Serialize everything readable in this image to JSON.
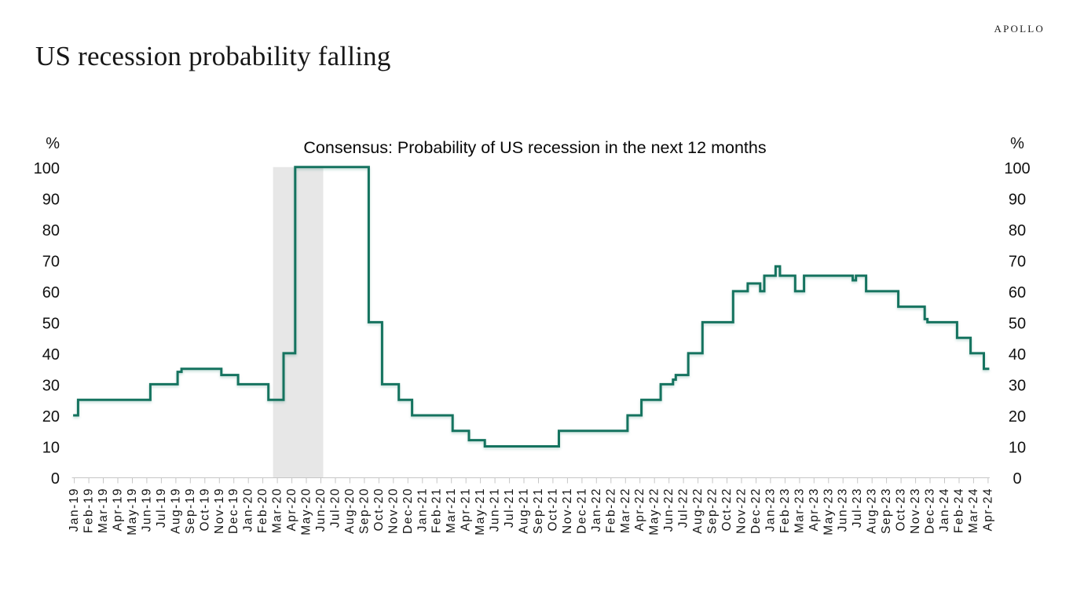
{
  "page": {
    "background": "#ffffff"
  },
  "header": {
    "title": "US recession probability falling",
    "brand": "APOLLO"
  },
  "chart_data": {
    "type": "line",
    "title": "Consensus: Probability of US recession in the next 12 months",
    "grid": false,
    "legend": false,
    "line_color": "#15735f",
    "axis_color": "#c6c6c6",
    "y_axis": {
      "unit": "%",
      "min": 0,
      "max": 100,
      "ticks": [
        0,
        10,
        20,
        30,
        40,
        50,
        60,
        70,
        80,
        90,
        100
      ],
      "sides": [
        "left",
        "right"
      ]
    },
    "x_labels": [
      "Jan-19",
      "Feb-19",
      "Mar-19",
      "Apr-19",
      "May-19",
      "Jun-19",
      "Jul-19",
      "Aug-19",
      "Sep-19",
      "Oct-19",
      "Nov-19",
      "Dec-19",
      "Jan-20",
      "Feb-20",
      "Mar-20",
      "Apr-20",
      "May-20",
      "Jun-20",
      "Jul-20",
      "Aug-20",
      "Sep-20",
      "Oct-20",
      "Nov-20",
      "Dec-20",
      "Jan-21",
      "Feb-21",
      "Mar-21",
      "Apr-21",
      "May-21",
      "Jun-21",
      "Jul-21",
      "Aug-21",
      "Sep-21",
      "Oct-21",
      "Nov-21",
      "Dec-21",
      "Jan-22",
      "Feb-22",
      "Mar-22",
      "Apr-22",
      "May-22",
      "Jun-22",
      "Jul-22",
      "Aug-22",
      "Sep-22",
      "Oct-22",
      "Nov-22",
      "Dec-22",
      "Jan-23",
      "Feb-23",
      "Mar-23",
      "Apr-23",
      "May-23",
      "Jun-23",
      "Jul-23",
      "Aug-23",
      "Sep-23",
      "Oct-23",
      "Nov-23",
      "Dec-23",
      "Jan-24",
      "Feb-24",
      "Mar-24",
      "Apr-24"
    ],
    "recession_band": {
      "from_index": 13.7,
      "to_index": 17.16,
      "color": "#e7e7e7"
    },
    "series": [
      {
        "name": "Consensus: Probability of US recession in the next 12 months",
        "color": "#15735f",
        "monthly_values": [
          20,
          25,
          25,
          25,
          25,
          25,
          30,
          30,
          35,
          35,
          35,
          33,
          30,
          30,
          25,
          40,
          100,
          100,
          100,
          100,
          100,
          50,
          30,
          25,
          20,
          20,
          20,
          15,
          12,
          10,
          10,
          10,
          10,
          10,
          15,
          15,
          15,
          15,
          15,
          20,
          25,
          30,
          33,
          40,
          50,
          50,
          60,
          62.5,
          65,
          65,
          60,
          65,
          65,
          65,
          65,
          60,
          60,
          55,
          55,
          50,
          50,
          45,
          40,
          35
        ],
        "step_points": [
          {
            "i": 0.0,
            "v": 20
          },
          {
            "i": 0.26,
            "v": 25
          },
          {
            "i": 5.24,
            "v": 30
          },
          {
            "i": 7.12,
            "v": 34
          },
          {
            "i": 7.39,
            "v": 35
          },
          {
            "i": 10.14,
            "v": 33
          },
          {
            "i": 11.29,
            "v": 30
          },
          {
            "i": 13.38,
            "v": 25
          },
          {
            "i": 14.43,
            "v": 40
          },
          {
            "i": 15.23,
            "v": 100
          },
          {
            "i": 20.3,
            "v": 50
          },
          {
            "i": 21.22,
            "v": 30
          },
          {
            "i": 22.37,
            "v": 25
          },
          {
            "i": 23.29,
            "v": 20
          },
          {
            "i": 26.08,
            "v": 15
          },
          {
            "i": 27.21,
            "v": 12
          },
          {
            "i": 28.3,
            "v": 10
          },
          {
            "i": 33.41,
            "v": 15
          },
          {
            "i": 38.14,
            "v": 20
          },
          {
            "i": 39.1,
            "v": 25
          },
          {
            "i": 40.43,
            "v": 30
          },
          {
            "i": 41.28,
            "v": 31.5
          },
          {
            "i": 41.47,
            "v": 33
          },
          {
            "i": 42.33,
            "v": 40
          },
          {
            "i": 43.31,
            "v": 50
          },
          {
            "i": 45.42,
            "v": 60
          },
          {
            "i": 46.43,
            "v": 62.5
          },
          {
            "i": 47.29,
            "v": 60
          },
          {
            "i": 47.57,
            "v": 65
          },
          {
            "i": 48.35,
            "v": 68
          },
          {
            "i": 48.65,
            "v": 65
          },
          {
            "i": 49.7,
            "v": 60
          },
          {
            "i": 50.31,
            "v": 65
          },
          {
            "i": 53.67,
            "v": 63.5
          },
          {
            "i": 53.89,
            "v": 65
          },
          {
            "i": 54.59,
            "v": 60
          },
          {
            "i": 56.81,
            "v": 55
          },
          {
            "i": 58.63,
            "v": 51
          },
          {
            "i": 58.82,
            "v": 50
          },
          {
            "i": 60.86,
            "v": 45
          },
          {
            "i": 61.79,
            "v": 40
          },
          {
            "i": 62.71,
            "v": 35
          }
        ],
        "end_index": 63.08
      }
    ]
  }
}
